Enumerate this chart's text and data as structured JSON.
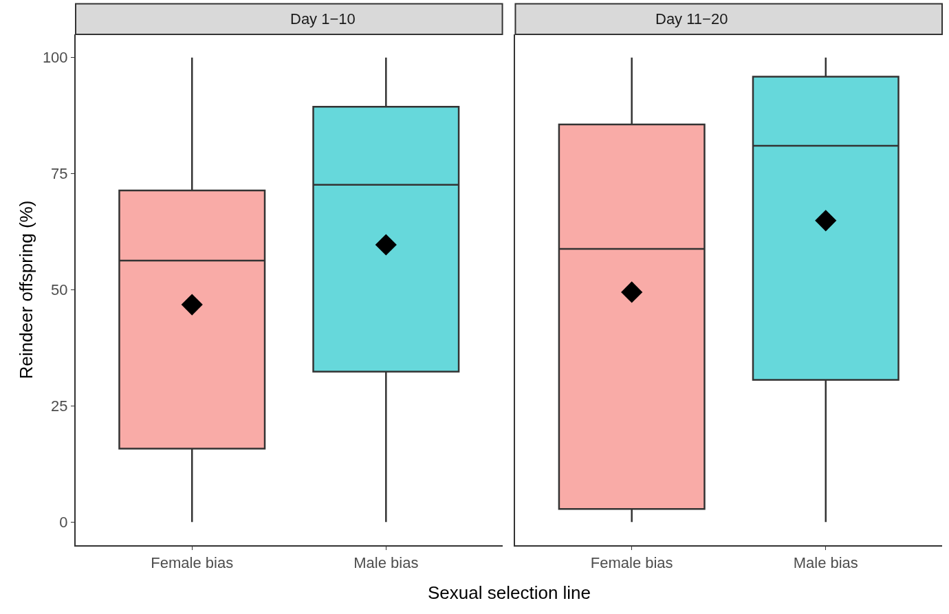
{
  "chart_data": [
    {
      "type": "box",
      "title": "Day 1−10",
      "ylabel": "Reindeer offspring (%)",
      "xlabel": "Sexual selection line",
      "categories": [
        "Female bias",
        "Male bias"
      ],
      "colors": [
        "#f9aba7",
        "#66d8db"
      ],
      "boxes": [
        {
          "low": 0,
          "q1": 15.8,
          "median": 56.3,
          "q3": 71.4,
          "high": 100,
          "mean": 46.8
        },
        {
          "low": 0,
          "q1": 32.4,
          "median": 72.6,
          "q3": 89.4,
          "high": 100,
          "mean": 59.7
        }
      ],
      "marker": "diamond",
      "ylim": [
        -5,
        105
      ],
      "yticks": [
        0,
        25,
        50,
        75,
        100
      ],
      "grid": false
    },
    {
      "type": "box",
      "title": "Day 11−20",
      "categories": [
        "Female bias",
        "Male bias"
      ],
      "colors": [
        "#f9aba7",
        "#66d8db"
      ],
      "boxes": [
        {
          "low": 0,
          "q1": 2.8,
          "median": 58.8,
          "q3": 85.6,
          "high": 100,
          "mean": 49.5
        },
        {
          "low": 0,
          "q1": 30.6,
          "median": 81.0,
          "q3": 95.9,
          "high": 100,
          "mean": 64.9
        }
      ],
      "marker": "diamond",
      "ylim": [
        -5,
        105
      ],
      "tick_labels": "x",
      "grid": false
    }
  ]
}
